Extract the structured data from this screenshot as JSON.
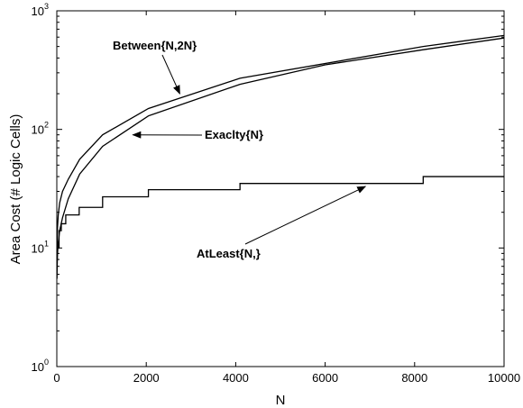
{
  "chart_data": {
    "type": "line",
    "title": "",
    "xlabel": "N",
    "ylabel": "Area Cost (# Logic Cells)",
    "xlim": [
      0,
      10000
    ],
    "ylim": [
      1,
      1000
    ],
    "yscale": "log",
    "grid": false,
    "legend": "none",
    "xticks": [
      "0",
      "2000",
      "4000",
      "6000",
      "8000",
      "10000"
    ],
    "yticks": [
      {
        "base": "10",
        "exp": "0",
        "value": 1
      },
      {
        "base": "10",
        "exp": "1",
        "value": 10
      },
      {
        "base": "10",
        "exp": "2",
        "value": 100
      },
      {
        "base": "10",
        "exp": "3",
        "value": 1000
      }
    ],
    "series": [
      {
        "id": "between",
        "x": [
          4,
          8,
          16,
          32,
          64,
          128,
          256,
          512,
          1024,
          2048,
          4096,
          8192,
          10000
        ],
        "y": [
          9,
          12,
          15,
          19,
          24,
          30,
          38,
          56,
          90,
          150,
          270,
          500,
          620
        ]
      },
      {
        "id": "exactly",
        "x": [
          4,
          8,
          16,
          32,
          64,
          128,
          256,
          512,
          1024,
          2048,
          4096,
          6000,
          8192,
          10000
        ],
        "y": [
          5.5,
          7,
          9,
          11,
          14,
          18,
          26,
          42,
          72,
          130,
          240,
          350,
          470,
          590
        ]
      },
      {
        "id": "atleast",
        "steps": [
          [
            4,
            10
          ],
          [
            50,
            14
          ],
          [
            100,
            16
          ],
          [
            200,
            19
          ],
          [
            500,
            22
          ],
          [
            1024,
            27
          ],
          [
            2048,
            31
          ],
          [
            4096,
            35
          ],
          [
            8192,
            40
          ],
          [
            10000,
            40
          ]
        ]
      }
    ],
    "annotations": [
      {
        "id": "between",
        "text": "Between{N,2N}",
        "arrow_to": [
          2750,
          200
        ]
      },
      {
        "id": "exactly",
        "text": "Exaclty{N}",
        "arrow_to": [
          1700,
          90
        ]
      },
      {
        "id": "atleast",
        "text": "AtLeast{N,}",
        "arrow_to": [
          6900,
          33
        ]
      }
    ]
  },
  "colors": {
    "line": "#000000",
    "background": "#ffffff"
  }
}
